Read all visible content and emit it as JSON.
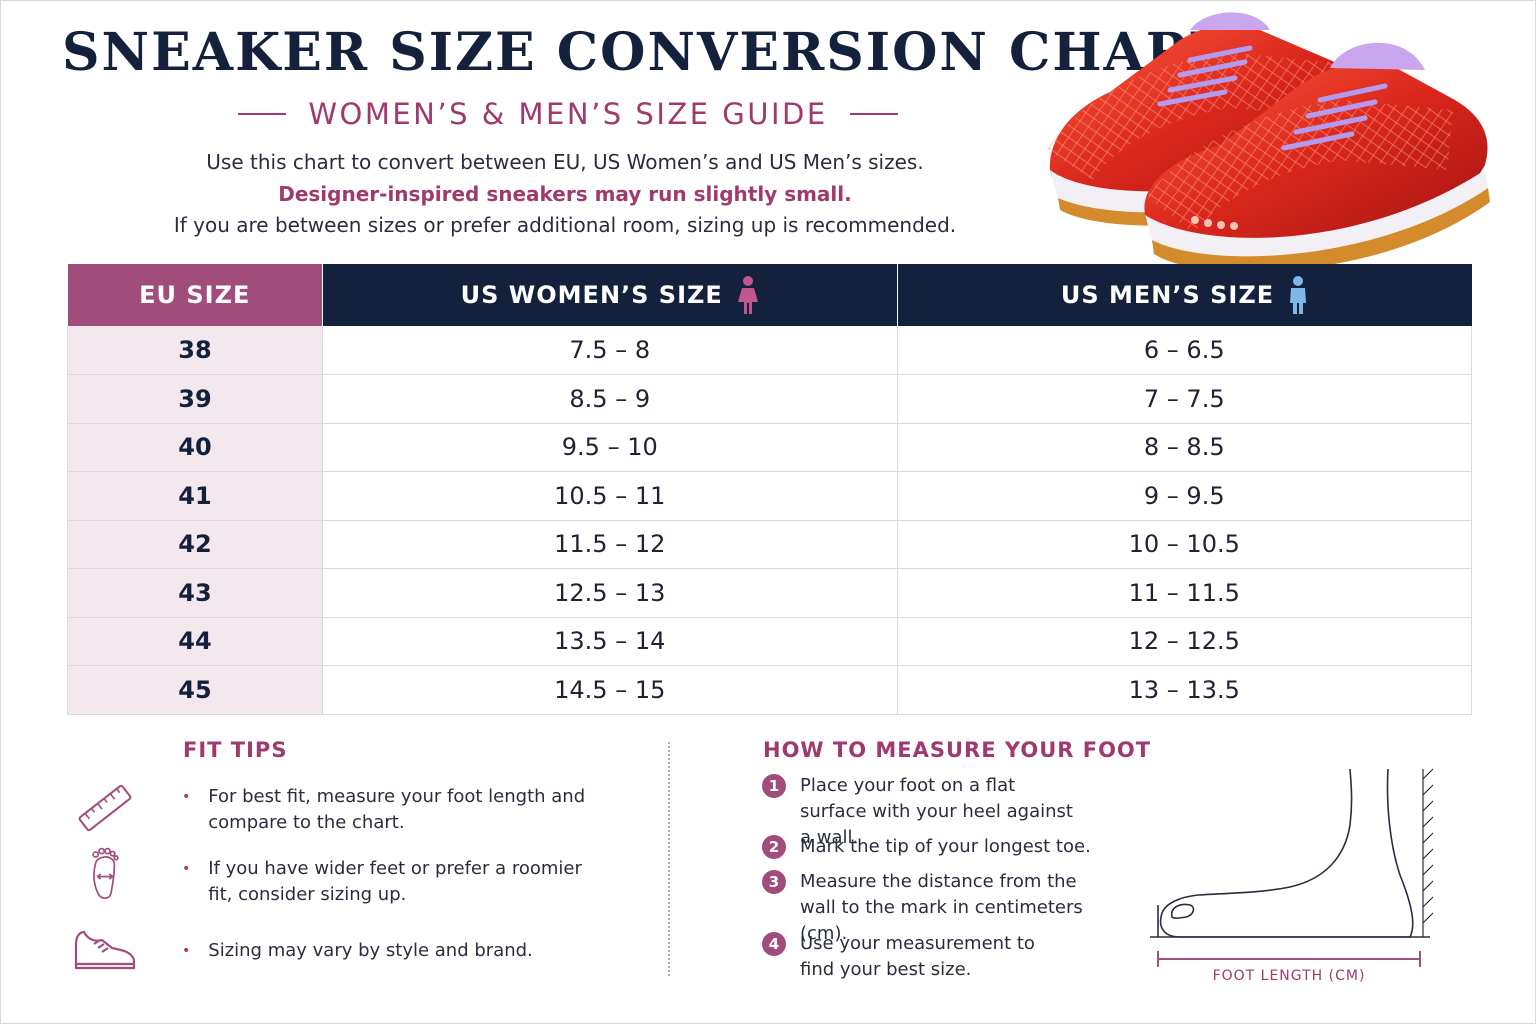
{
  "header": {
    "title": "SNEAKER SIZE CONVERSION CHART",
    "subtitle": "WOMEN’S & MEN’S SIZE GUIDE",
    "intro_line1": "Use this chart to convert between EU, US Women’s and US Men’s sizes.",
    "intro_line2": "Designer-inspired sneakers may run slightly small.",
    "intro_line3": "If you are between sizes or prefer additional room, sizing up is recommended."
  },
  "table": {
    "headers": {
      "eu": "EU SIZE",
      "women": "US WOMEN’S SIZE",
      "men": "US MEN’S SIZE"
    },
    "rows": [
      {
        "eu": "38",
        "women": "7.5 – 8",
        "men": "6 – 6.5"
      },
      {
        "eu": "39",
        "women": "8.5 – 9",
        "men": "7 – 7.5"
      },
      {
        "eu": "40",
        "women": "9.5 – 10",
        "men": "8 – 8.5"
      },
      {
        "eu": "41",
        "women": "10.5 – 11",
        "men": "9 – 9.5"
      },
      {
        "eu": "42",
        "women": "11.5 – 12",
        "men": "10 – 10.5"
      },
      {
        "eu": "43",
        "women": "12.5 – 13",
        "men": "11 – 11.5"
      },
      {
        "eu": "44",
        "women": "13.5 – 14",
        "men": "12 – 12.5"
      },
      {
        "eu": "45",
        "women": "14.5 – 15",
        "men": "13 – 13.5"
      }
    ]
  },
  "fit_tips": {
    "title": "FIT TIPS",
    "items": [
      "For best fit, measure your foot length and compare to the chart.",
      "If you have wider feet or prefer a roomier fit, consider sizing up.",
      "Sizing may vary by style and brand."
    ],
    "icons": [
      "ruler-icon",
      "foot-width-icon",
      "sneaker-icon"
    ]
  },
  "measure": {
    "title": "HOW TO MEASURE YOUR FOOT",
    "steps": [
      {
        "num": "1",
        "text": "Place your foot on a flat surface with your heel against a wall."
      },
      {
        "num": "2",
        "text": "Mark the tip of your longest toe."
      },
      {
        "num": "3",
        "text": "Measure the distance from the wall to the mark in centimeters (cm)."
      },
      {
        "num": "4",
        "text": "Use your measurement to find your best size."
      }
    ],
    "foot_label": "FOOT LENGTH (CM)"
  },
  "colors": {
    "navy": "#14213d",
    "plum": "#a04d7c",
    "accent_text": "#a03a6e",
    "eu_cell": "#f4e8ef"
  }
}
